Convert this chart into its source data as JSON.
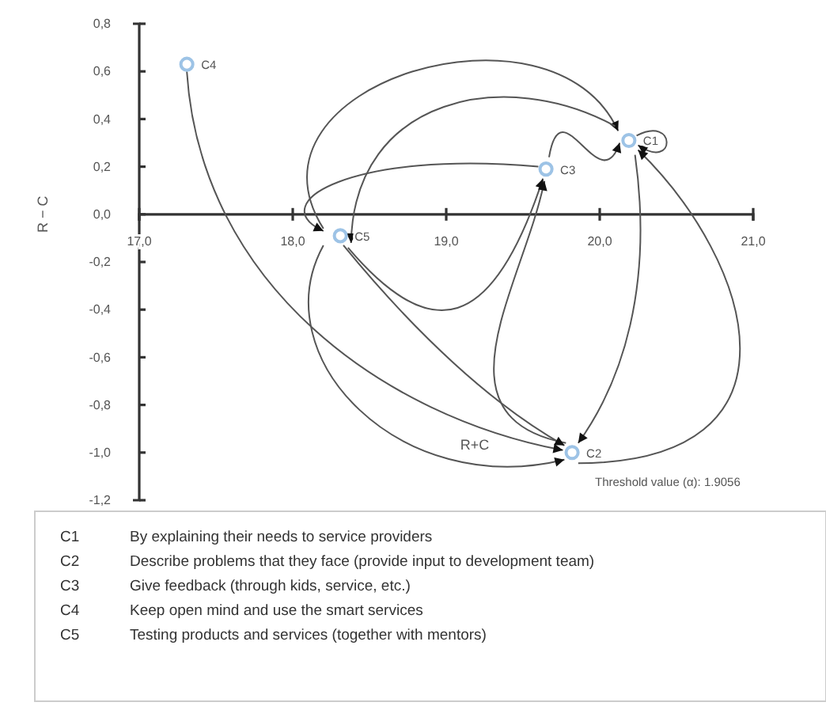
{
  "chart_data": {
    "type": "scatter",
    "xlabel": "R+C",
    "ylabel": "R − C",
    "xlim": [
      17,
      21
    ],
    "ylim": [
      -1.2,
      0.8
    ],
    "xticks": [
      {
        "value": 17,
        "label": "17,0"
      },
      {
        "value": 18,
        "label": "18,0"
      },
      {
        "value": 19,
        "label": "19,0"
      },
      {
        "value": 20,
        "label": "20,0"
      },
      {
        "value": 21,
        "label": "21,0"
      }
    ],
    "yticks": [
      {
        "value": 0.8,
        "label": "0,8"
      },
      {
        "value": 0.6,
        "label": "0,6"
      },
      {
        "value": 0.4,
        "label": "0,4"
      },
      {
        "value": 0.2,
        "label": "0,2"
      },
      {
        "value": 0,
        "label": "0,0"
      },
      {
        "value": -0.2,
        "label": "-0,2"
      },
      {
        "value": -0.4,
        "label": "-0,4"
      },
      {
        "value": -0.6,
        "label": "-0,6"
      },
      {
        "value": -0.8,
        "label": "-0,8"
      },
      {
        "value": -1.0,
        "label": "-1,0"
      },
      {
        "value": -1.2,
        "label": "-1,2"
      }
    ],
    "marker": "circle",
    "series": [
      {
        "name": "C1",
        "color": "#9dc3e6",
        "x": [
          20.19
        ],
        "values": [
          0.31
        ]
      },
      {
        "name": "C2",
        "color": "#9dc3e6",
        "x": [
          19.82
        ],
        "values": [
          -1.0
        ]
      },
      {
        "name": "C3",
        "color": "#9dc3e6",
        "x": [
          19.65
        ],
        "values": [
          0.19
        ]
      },
      {
        "name": "C4",
        "color": "#9dc3e6",
        "x": [
          17.31
        ],
        "values": [
          0.63
        ]
      },
      {
        "name": "C5",
        "color": "#9dc3e6",
        "x": [
          18.31
        ],
        "values": [
          -0.09
        ]
      }
    ],
    "annotations": [
      "Threshold value (α): 1.9056",
      "C1 By explaining their needs to service providers",
      "C2 Describe problems that they face (provide input to development team)",
      "C3 Give feedback (through kids, service, etc.)",
      "C4 Keep open mind and use the smart services",
      "C5 Testing products and services (together with mentors)"
    ]
  }
}
